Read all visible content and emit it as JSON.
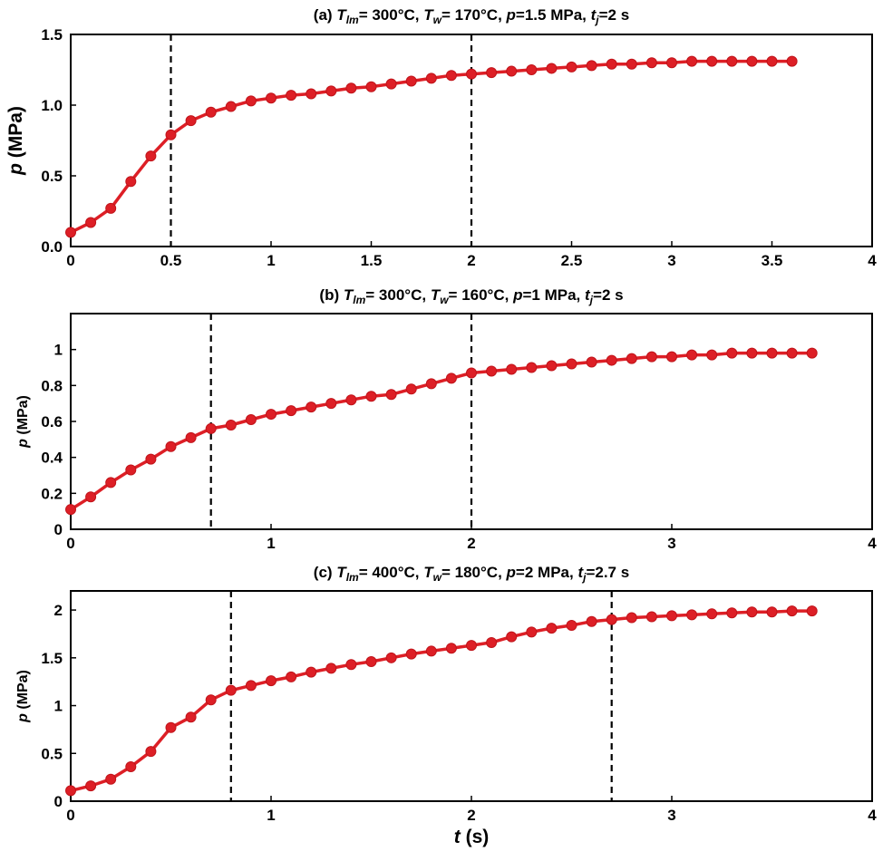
{
  "colors": {
    "series": "#dd1f26",
    "marker_edge": "#c0141a",
    "axis": "#000000",
    "vline": "#000000"
  },
  "chart_data": [
    {
      "type": "line",
      "title": {
        "prefix": "(a) ",
        "t_sym": "T",
        "lm_sub": "lm",
        "mid1": "= 300°C, ",
        "w_sym": "T",
        "w_sub": "w",
        "mid2": "= 170°C, ",
        "p_sym": "p",
        "p_val": "=1.5 MPa, ",
        "t_sym2": "t",
        "j_sub": "j",
        "tail": "=2 s"
      },
      "ylabel_sym": "p",
      "ylabel_unit": " (MPa)",
      "xlabel_sym": "",
      "xlabel_unit": "",
      "xlim": [
        0,
        4
      ],
      "ylim": [
        0,
        1.5
      ],
      "xticks": [
        0,
        0.5,
        1,
        1.5,
        2,
        2.5,
        3,
        3.5,
        4
      ],
      "xtick_labels": [
        "0",
        "0.5",
        "1",
        "1.5",
        "2",
        "2.5",
        "3",
        "3.5",
        "4"
      ],
      "yticks": [
        0,
        0.5,
        1.0,
        1.5
      ],
      "ytick_labels": [
        "0.0",
        "0.5",
        "1.0",
        "1.5"
      ],
      "vlines": [
        0.5,
        2.0
      ],
      "series": [
        {
          "name": "p",
          "x": [
            0,
            0.1,
            0.2,
            0.3,
            0.4,
            0.5,
            0.6,
            0.7,
            0.8,
            0.9,
            1.0,
            1.1,
            1.2,
            1.3,
            1.4,
            1.5,
            1.6,
            1.7,
            1.8,
            1.9,
            2.0,
            2.1,
            2.2,
            2.3,
            2.4,
            2.5,
            2.6,
            2.7,
            2.8,
            2.9,
            3.0,
            3.1,
            3.2,
            3.3,
            3.4,
            3.5,
            3.6
          ],
          "y": [
            0.1,
            0.17,
            0.27,
            0.46,
            0.64,
            0.79,
            0.89,
            0.95,
            0.99,
            1.03,
            1.05,
            1.07,
            1.08,
            1.1,
            1.12,
            1.13,
            1.15,
            1.17,
            1.19,
            1.21,
            1.22,
            1.23,
            1.24,
            1.25,
            1.26,
            1.27,
            1.28,
            1.29,
            1.29,
            1.3,
            1.3,
            1.31,
            1.31,
            1.31,
            1.31,
            1.31,
            1.31
          ]
        }
      ]
    },
    {
      "type": "line",
      "title": {
        "prefix": "(b) ",
        "t_sym": "T",
        "lm_sub": "lm",
        "mid1": "= 300°C, ",
        "w_sym": "T",
        "w_sub": "w",
        "mid2": "= 160°C, ",
        "p_sym": "p",
        "p_val": "=1 MPa, ",
        "t_sym2": "t",
        "j_sub": "j",
        "tail": "=2 s"
      },
      "ylabel_sym": "p",
      "ylabel_unit": " (MPa)",
      "xlabel_sym": "",
      "xlabel_unit": "",
      "xlim": [
        0,
        4
      ],
      "ylim": [
        0,
        1.2
      ],
      "xticks": [
        0,
        1,
        2,
        3,
        4
      ],
      "xtick_labels": [
        "0",
        "1",
        "2",
        "3",
        "4"
      ],
      "yticks": [
        0,
        0.2,
        0.4,
        0.6,
        0.8,
        1
      ],
      "ytick_labels": [
        "0",
        "0.2",
        "0.4",
        "0.6",
        "0.8",
        "1"
      ],
      "vlines": [
        0.7,
        2.0
      ],
      "series": [
        {
          "name": "p",
          "x": [
            0,
            0.1,
            0.2,
            0.3,
            0.4,
            0.5,
            0.6,
            0.7,
            0.8,
            0.9,
            1.0,
            1.1,
            1.2,
            1.3,
            1.4,
            1.5,
            1.6,
            1.7,
            1.8,
            1.9,
            2.0,
            2.1,
            2.2,
            2.3,
            2.4,
            2.5,
            2.6,
            2.7,
            2.8,
            2.9,
            3.0,
            3.1,
            3.2,
            3.3,
            3.4,
            3.5,
            3.6,
            3.7
          ],
          "y": [
            0.11,
            0.18,
            0.26,
            0.33,
            0.39,
            0.46,
            0.51,
            0.56,
            0.58,
            0.61,
            0.64,
            0.66,
            0.68,
            0.7,
            0.72,
            0.74,
            0.75,
            0.78,
            0.81,
            0.84,
            0.87,
            0.88,
            0.89,
            0.9,
            0.91,
            0.92,
            0.93,
            0.94,
            0.95,
            0.96,
            0.96,
            0.97,
            0.97,
            0.98,
            0.98,
            0.98,
            0.98,
            0.98
          ]
        }
      ]
    },
    {
      "type": "line",
      "title": {
        "prefix": "(c) ",
        "t_sym": "T",
        "lm_sub": "lm",
        "mid1": "= 400°C, ",
        "w_sym": "T",
        "w_sub": "w",
        "mid2": "= 180°C, ",
        "p_sym": "p",
        "p_val": "=2 MPa, ",
        "t_sym2": "t",
        "j_sub": "j",
        "tail": "=2.7 s"
      },
      "ylabel_sym": "p",
      "ylabel_unit": " (MPa)",
      "xlabel_sym": "t",
      "xlabel_unit": " (s)",
      "xlim": [
        0,
        4
      ],
      "ylim": [
        0,
        2.2
      ],
      "xticks": [
        0,
        1,
        2,
        3,
        4
      ],
      "xtick_labels": [
        "0",
        "1",
        "2",
        "3",
        "4"
      ],
      "yticks": [
        0,
        0.5,
        1,
        1.5,
        2
      ],
      "ytick_labels": [
        "0",
        "0.5",
        "1",
        "1.5",
        "2"
      ],
      "vlines": [
        0.8,
        2.7
      ],
      "series": [
        {
          "name": "p",
          "x": [
            0,
            0.1,
            0.2,
            0.3,
            0.4,
            0.5,
            0.6,
            0.7,
            0.8,
            0.9,
            1.0,
            1.1,
            1.2,
            1.3,
            1.4,
            1.5,
            1.6,
            1.7,
            1.8,
            1.9,
            2.0,
            2.1,
            2.2,
            2.3,
            2.4,
            2.5,
            2.6,
            2.7,
            2.8,
            2.9,
            3.0,
            3.1,
            3.2,
            3.3,
            3.4,
            3.5,
            3.6,
            3.7
          ],
          "y": [
            0.11,
            0.16,
            0.23,
            0.36,
            0.52,
            0.77,
            0.88,
            1.06,
            1.16,
            1.21,
            1.26,
            1.3,
            1.35,
            1.39,
            1.43,
            1.46,
            1.5,
            1.54,
            1.57,
            1.6,
            1.63,
            1.66,
            1.72,
            1.77,
            1.81,
            1.84,
            1.88,
            1.9,
            1.92,
            1.93,
            1.94,
            1.95,
            1.96,
            1.97,
            1.98,
            1.98,
            1.99,
            1.99
          ]
        }
      ]
    }
  ]
}
